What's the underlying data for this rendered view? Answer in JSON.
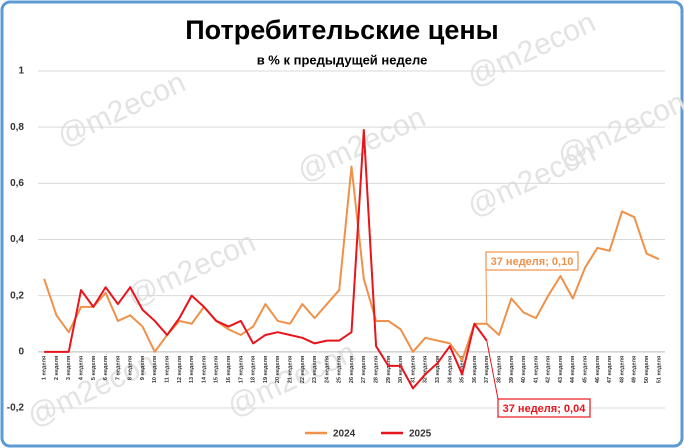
{
  "chart_data": {
    "type": "line",
    "title": "Потребительские цены",
    "subtitle": "в % к предыдущей неделе",
    "watermark": "@m2econ",
    "categories": [
      "1 неделя",
      "2 неделя",
      "3 неделя",
      "4 неделя",
      "5 неделя",
      "6 неделя",
      "7 неделя",
      "8 неделя",
      "9 неделя",
      "10 неделя",
      "11 неделя",
      "12 неделя",
      "13 неделя",
      "14 неделя",
      "15 неделя",
      "16 неделя",
      "17 неделя",
      "18 неделя",
      "19 неделя",
      "20 неделя",
      "21 неделя",
      "22 неделя",
      "23 неделя",
      "24 неделя",
      "25 неделя",
      "26 неделя",
      "27 неделя",
      "28 неделя",
      "29 неделя",
      "30 неделя",
      "31 неделя",
      "32 неделя",
      "33 неделя",
      "34 неделя",
      "35 неделя",
      "36 неделя",
      "37 неделя",
      "38 неделя",
      "39 неделя",
      "40 неделя",
      "41 неделя",
      "42 неделя",
      "43 неделя",
      "44 неделя",
      "45 неделя",
      "46 неделя",
      "47 неделя",
      "48 неделя",
      "49 неделя",
      "50 неделя",
      "51 неделя"
    ],
    "series": [
      {
        "name": "2024",
        "color": "#f0914a",
        "values": [
          0.26,
          0.13,
          0.07,
          0.16,
          0.16,
          0.21,
          0.11,
          0.13,
          0.09,
          0.0,
          0.06,
          0.11,
          0.1,
          0.16,
          0.11,
          0.08,
          0.06,
          0.09,
          0.17,
          0.11,
          0.1,
          0.17,
          0.12,
          0.17,
          0.22,
          0.66,
          0.26,
          0.11,
          0.11,
          0.08,
          0.0,
          0.05,
          0.04,
          0.03,
          -0.03,
          0.1,
          0.1,
          0.06,
          0.19,
          0.14,
          0.12,
          0.2,
          0.27,
          0.19,
          0.3,
          0.37,
          0.36,
          0.5,
          0.48,
          0.35,
          0.33
        ]
      },
      {
        "name": "2025",
        "color": "#e8141c",
        "values": [
          0.0,
          0.0,
          0.0,
          0.22,
          0.16,
          0.23,
          0.17,
          0.23,
          0.15,
          0.11,
          0.06,
          0.12,
          0.2,
          0.16,
          0.11,
          0.09,
          0.11,
          0.03,
          0.06,
          0.07,
          0.06,
          0.05,
          0.03,
          0.04,
          0.04,
          0.07,
          0.79,
          0.02,
          -0.05,
          -0.05,
          -0.13,
          -0.08,
          -0.04,
          0.02,
          -0.08,
          0.1,
          0.04,
          null,
          null,
          null,
          null,
          null,
          null,
          null,
          null,
          null,
          null,
          null,
          null,
          null,
          null
        ]
      }
    ],
    "annotations": [
      "37 неделя; 0,10",
      "37 неделя; 0,04"
    ],
    "ylim": [
      -0.2,
      1
    ],
    "yticks": [
      {
        "value": -0.2,
        "label": "-0,2"
      },
      0,
      {
        "value": 0.2,
        "label": "0,2"
      },
      {
        "value": 0.4,
        "label": "0,4"
      },
      {
        "value": 0.6,
        "label": "0,6"
      },
      {
        "value": 0.8,
        "label": "0,8"
      },
      1
    ],
    "grid": true,
    "legend": "bottom"
  }
}
